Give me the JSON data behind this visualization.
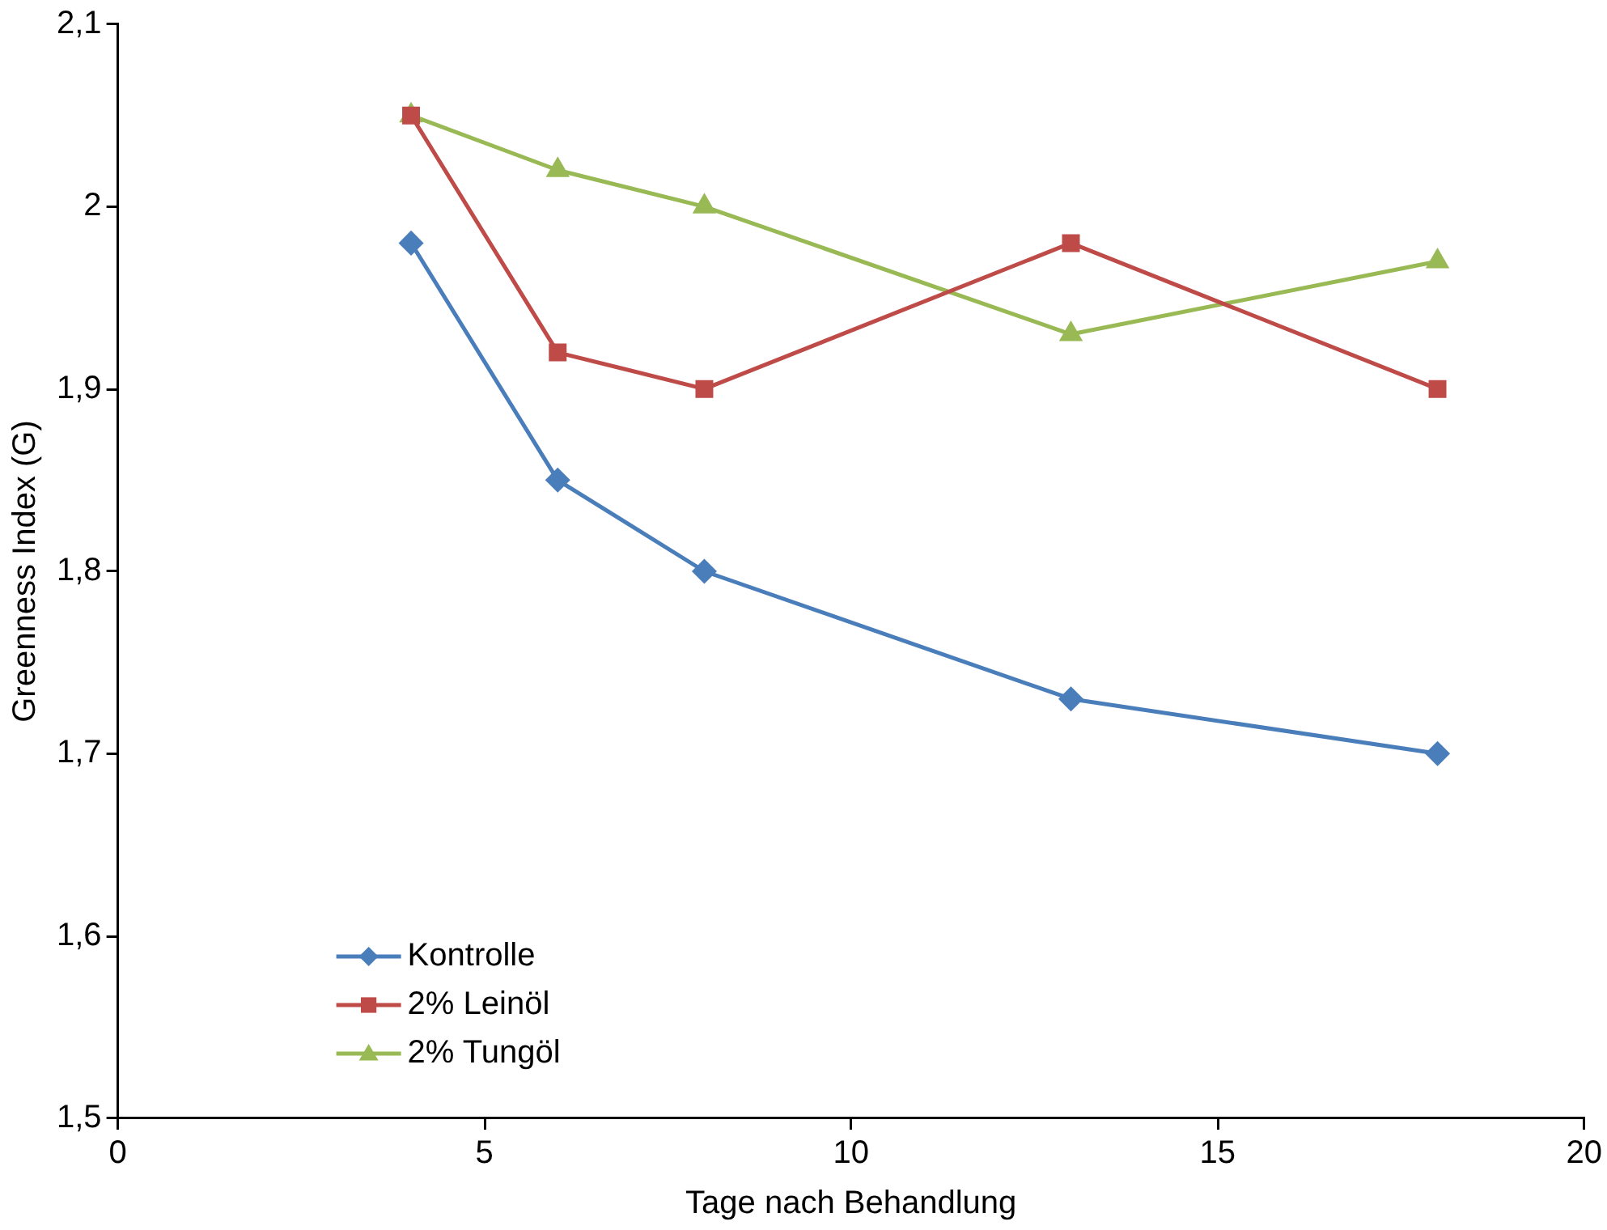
{
  "chart_data": {
    "type": "line",
    "xlabel": "Tage nach Behandlung",
    "ylabel": "Greenness Index (G)",
    "xlim": [
      0,
      20
    ],
    "xticks": [
      0,
      5,
      10,
      15,
      20
    ],
    "ylim": [
      1.5,
      2.1
    ],
    "yticks": [
      {
        "value": 1.5,
        "label": "1,5"
      },
      {
        "value": 1.6,
        "label": "1,6"
      },
      {
        "value": 1.7,
        "label": "1,7"
      },
      {
        "value": 1.8,
        "label": "1,8"
      },
      {
        "value": 1.9,
        "label": "1,9"
      },
      2,
      {
        "value": 2.1,
        "label": "2,1"
      }
    ],
    "x": [
      4,
      6,
      8,
      13,
      18
    ],
    "series": [
      {
        "name": "Kontrolle",
        "color": "#4a7ebb",
        "marker": "diamond",
        "values": [
          1.98,
          1.85,
          1.8,
          1.73,
          1.7
        ]
      },
      {
        "name": "2% Leinöl",
        "color": "#be4b48",
        "marker": "square",
        "values": [
          2.05,
          1.92,
          1.9,
          1.98,
          1.9
        ]
      },
      {
        "name": "2% Tungöl",
        "color": "#98b954",
        "marker": "triangle",
        "values": [
          2.05,
          2.02,
          2.0,
          1.93,
          1.97
        ]
      }
    ],
    "grid": false,
    "legend": "bottom left",
    "line_style": "solid"
  }
}
